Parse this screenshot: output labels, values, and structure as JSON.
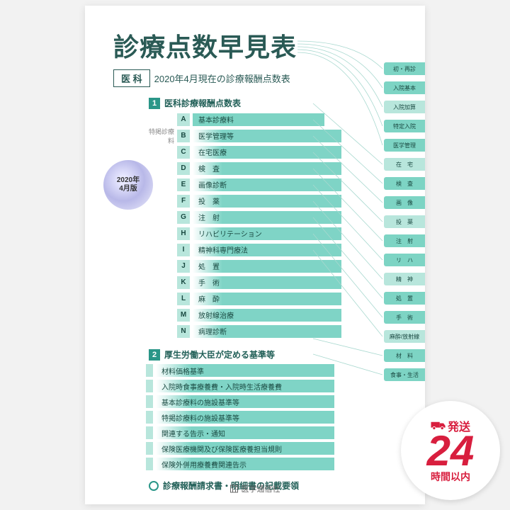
{
  "cover": {
    "title": "診療点数早見表",
    "dept": "医 科",
    "subtitle": "2020年4月現在の診療報酬点数表",
    "edition_year": "2020年",
    "edition_month": "4月版",
    "publisher": "医学通信社"
  },
  "section1": {
    "num": "1",
    "title": "医科診療報酬点数表",
    "col1_row1": {
      "letter": "A",
      "label": "基本診療料"
    },
    "col1_label": "特掲診療料",
    "rows": [
      {
        "letter": "B",
        "label": "医学管理等"
      },
      {
        "letter": "C",
        "label": "在宅医療"
      },
      {
        "letter": "D",
        "label": "検　査"
      },
      {
        "letter": "E",
        "label": "画像診断"
      },
      {
        "letter": "F",
        "label": "投　薬"
      },
      {
        "letter": "G",
        "label": "注　射"
      },
      {
        "letter": "H",
        "label": "リハビリテーション"
      },
      {
        "letter": "I",
        "label": "精神科専門療法"
      },
      {
        "letter": "J",
        "label": "処　置"
      },
      {
        "letter": "K",
        "label": "手　術"
      },
      {
        "letter": "L",
        "label": "麻　酔"
      },
      {
        "letter": "M",
        "label": "放射線治療"
      },
      {
        "letter": "N",
        "label": "病理診断"
      }
    ]
  },
  "section2": {
    "num": "2",
    "title": "厚生労働大臣が定める基準等",
    "rows": [
      {
        "label": "材料価格基準"
      },
      {
        "label": "入院時食事療養費・入院時生活療養費"
      },
      {
        "label": "基本診療料の施設基準等"
      },
      {
        "label": "特掲診療料の施設基準等"
      },
      {
        "label": "関連する告示・通知"
      },
      {
        "label": "保険医療機関及び保険医療養担当規則"
      },
      {
        "label": "保険外併用療養費関連告示"
      }
    ]
  },
  "footer_line": "診療報酬請求書・明細書の記載要領",
  "tabs": [
    "初・再診",
    "入院基本",
    "入院加算",
    "特定入院",
    "医学管理",
    "在　宅",
    "検　査",
    "画　像",
    "投　薬",
    "注　射",
    "リ　ハ",
    "精　神",
    "処　置",
    "手　術",
    "麻酔/放射線",
    "材　料",
    "食事・生活"
  ],
  "tab_colors": {
    "primary": "#7dd4c4",
    "alt": "#b8e6dc"
  },
  "shipping": {
    "top": "発送",
    "num": "24",
    "bottom": "時間以内"
  },
  "style": {
    "title_color": "#2a5a55",
    "accent": "#2a9688",
    "bar_gradient_color": "#7dd4c4",
    "background": "#f2f2f2",
    "cover_bg": "#ffffff",
    "connector_color": "#a8d8cf"
  }
}
